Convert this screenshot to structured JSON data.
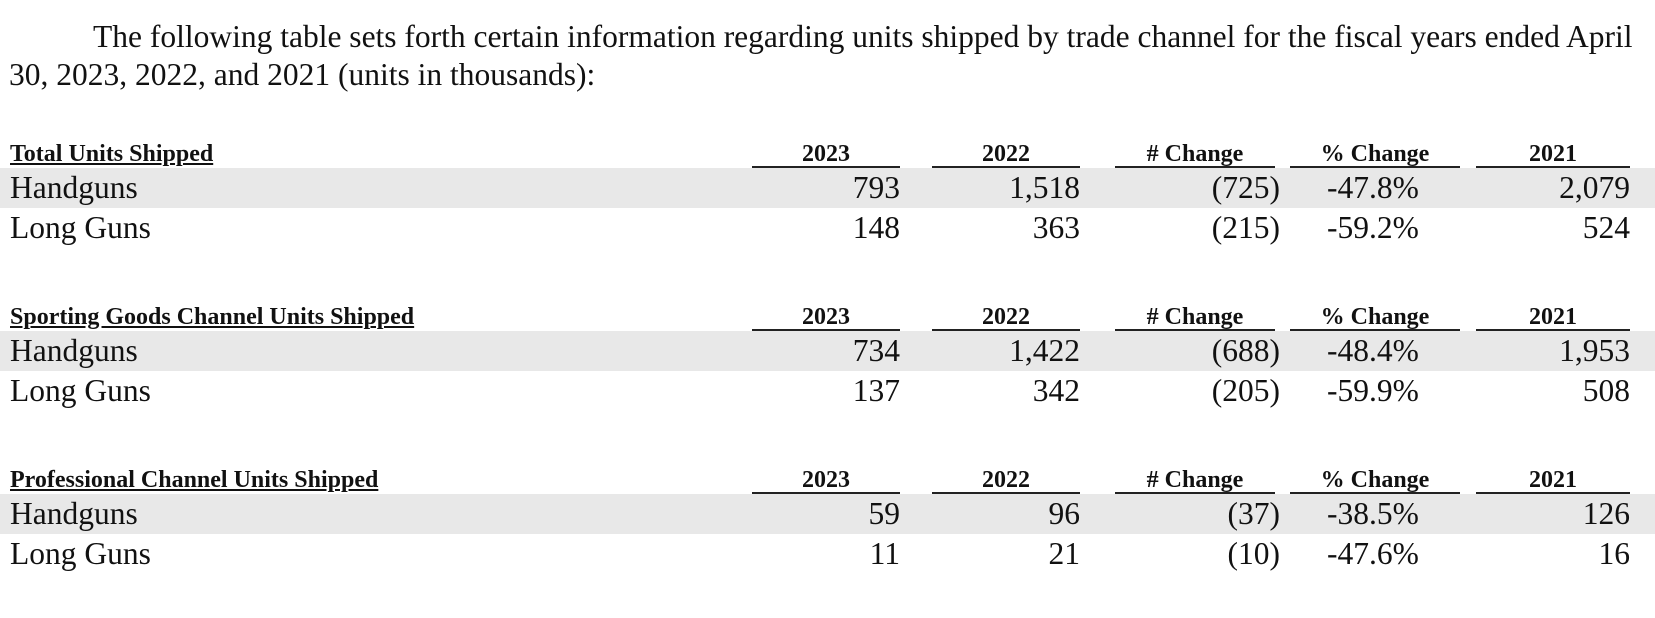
{
  "intro": "The following table sets forth certain information regarding units shipped by trade channel for the fiscal years ended April 30, 2023, 2022, and 2021 (units in thousands):",
  "columns": {
    "c2023": "2023",
    "c2022": "2022",
    "change": "# Change",
    "pct_change": "% Change",
    "c2021": "2021"
  },
  "sections": [
    {
      "title": "Total Units Shipped",
      "rows": [
        {
          "label": "Handguns",
          "v2023": "793",
          "v2022": "1,518",
          "change": "(725)",
          "pct": "-47.8%",
          "v2021": "2,079"
        },
        {
          "label": "Long Guns",
          "v2023": "148",
          "v2022": "363",
          "change": "(215)",
          "pct": "-59.2%",
          "v2021": "524"
        }
      ]
    },
    {
      "title": "Sporting Goods Channel Units Shipped",
      "rows": [
        {
          "label": "Handguns",
          "v2023": "734",
          "v2022": "1,422",
          "change": "(688)",
          "pct": "-48.4%",
          "v2021": "1,953"
        },
        {
          "label": "Long Guns",
          "v2023": "137",
          "v2022": "342",
          "change": "(205)",
          "pct": "-59.9%",
          "v2021": "508"
        }
      ]
    },
    {
      "title": "Professional Channel Units Shipped",
      "rows": [
        {
          "label": "Handguns",
          "v2023": "59",
          "v2022": "96",
          "change": "(37)",
          "pct": "-38.5%",
          "v2021": "126"
        },
        {
          "label": "Long Guns",
          "v2023": "11",
          "v2022": "21",
          "change": "(10)",
          "pct": "-47.6%",
          "v2021": "16"
        }
      ]
    }
  ]
}
